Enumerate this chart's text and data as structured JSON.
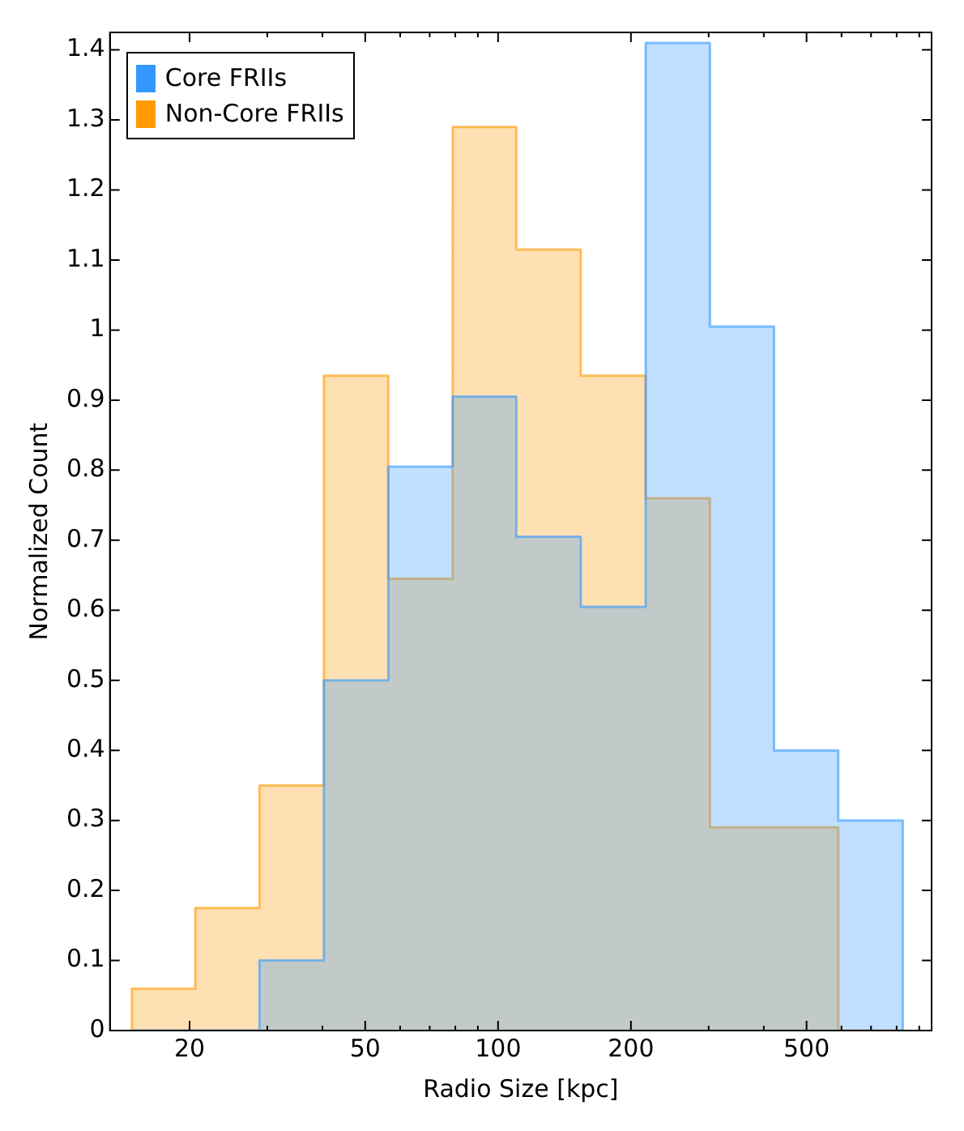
{
  "chart_data": {
    "type": "histogram",
    "xlabel": "Radio Size [kpc]",
    "ylabel": "Normalized Count",
    "bins": [
      14.8,
      20.6,
      28.8,
      40.3,
      56.4,
      78.9,
      110,
      154,
      216,
      302,
      422,
      590,
      826
    ],
    "series": [
      {
        "name": "Core FRIIs",
        "color": "#3399ff",
        "values": [
          0,
          0,
          0.1,
          0.5,
          0.805,
          0.905,
          0.705,
          0.605,
          1.41,
          1.005,
          0.4,
          0.3
        ]
      },
      {
        "name": "Non-Core FRIIs",
        "color": "#ff9900",
        "values": [
          0.06,
          0.175,
          0.35,
          0.935,
          0.645,
          1.29,
          1.115,
          0.935,
          0.76,
          0.29,
          0.29,
          0
        ]
      }
    ],
    "log": "x",
    "xlim": [
      13.2,
      960
    ],
    "ylim": [
      0,
      1.425
    ],
    "xticks": [
      20,
      {
        "value": 30,
        "label": null
      },
      {
        "value": 40,
        "label": null
      },
      50,
      {
        "value": 60,
        "label": null
      },
      {
        "value": 70,
        "label": null
      },
      {
        "value": 80,
        "label": null
      },
      {
        "value": 90,
        "label": null
      },
      100,
      200,
      {
        "value": 300,
        "label": null
      },
      {
        "value": 400,
        "label": null
      },
      500,
      {
        "value": 600,
        "label": null
      },
      {
        "value": 700,
        "label": null
      },
      {
        "value": 800,
        "label": null
      },
      {
        "value": 900,
        "label": null
      }
    ],
    "yticks": [
      0,
      0.1,
      0.2,
      0.3,
      0.4,
      0.5,
      0.6,
      0.7,
      0.8,
      0.9,
      1.0,
      1.1,
      1.2,
      1.3,
      1.4
    ],
    "grid": false,
    "legend": "top left"
  }
}
